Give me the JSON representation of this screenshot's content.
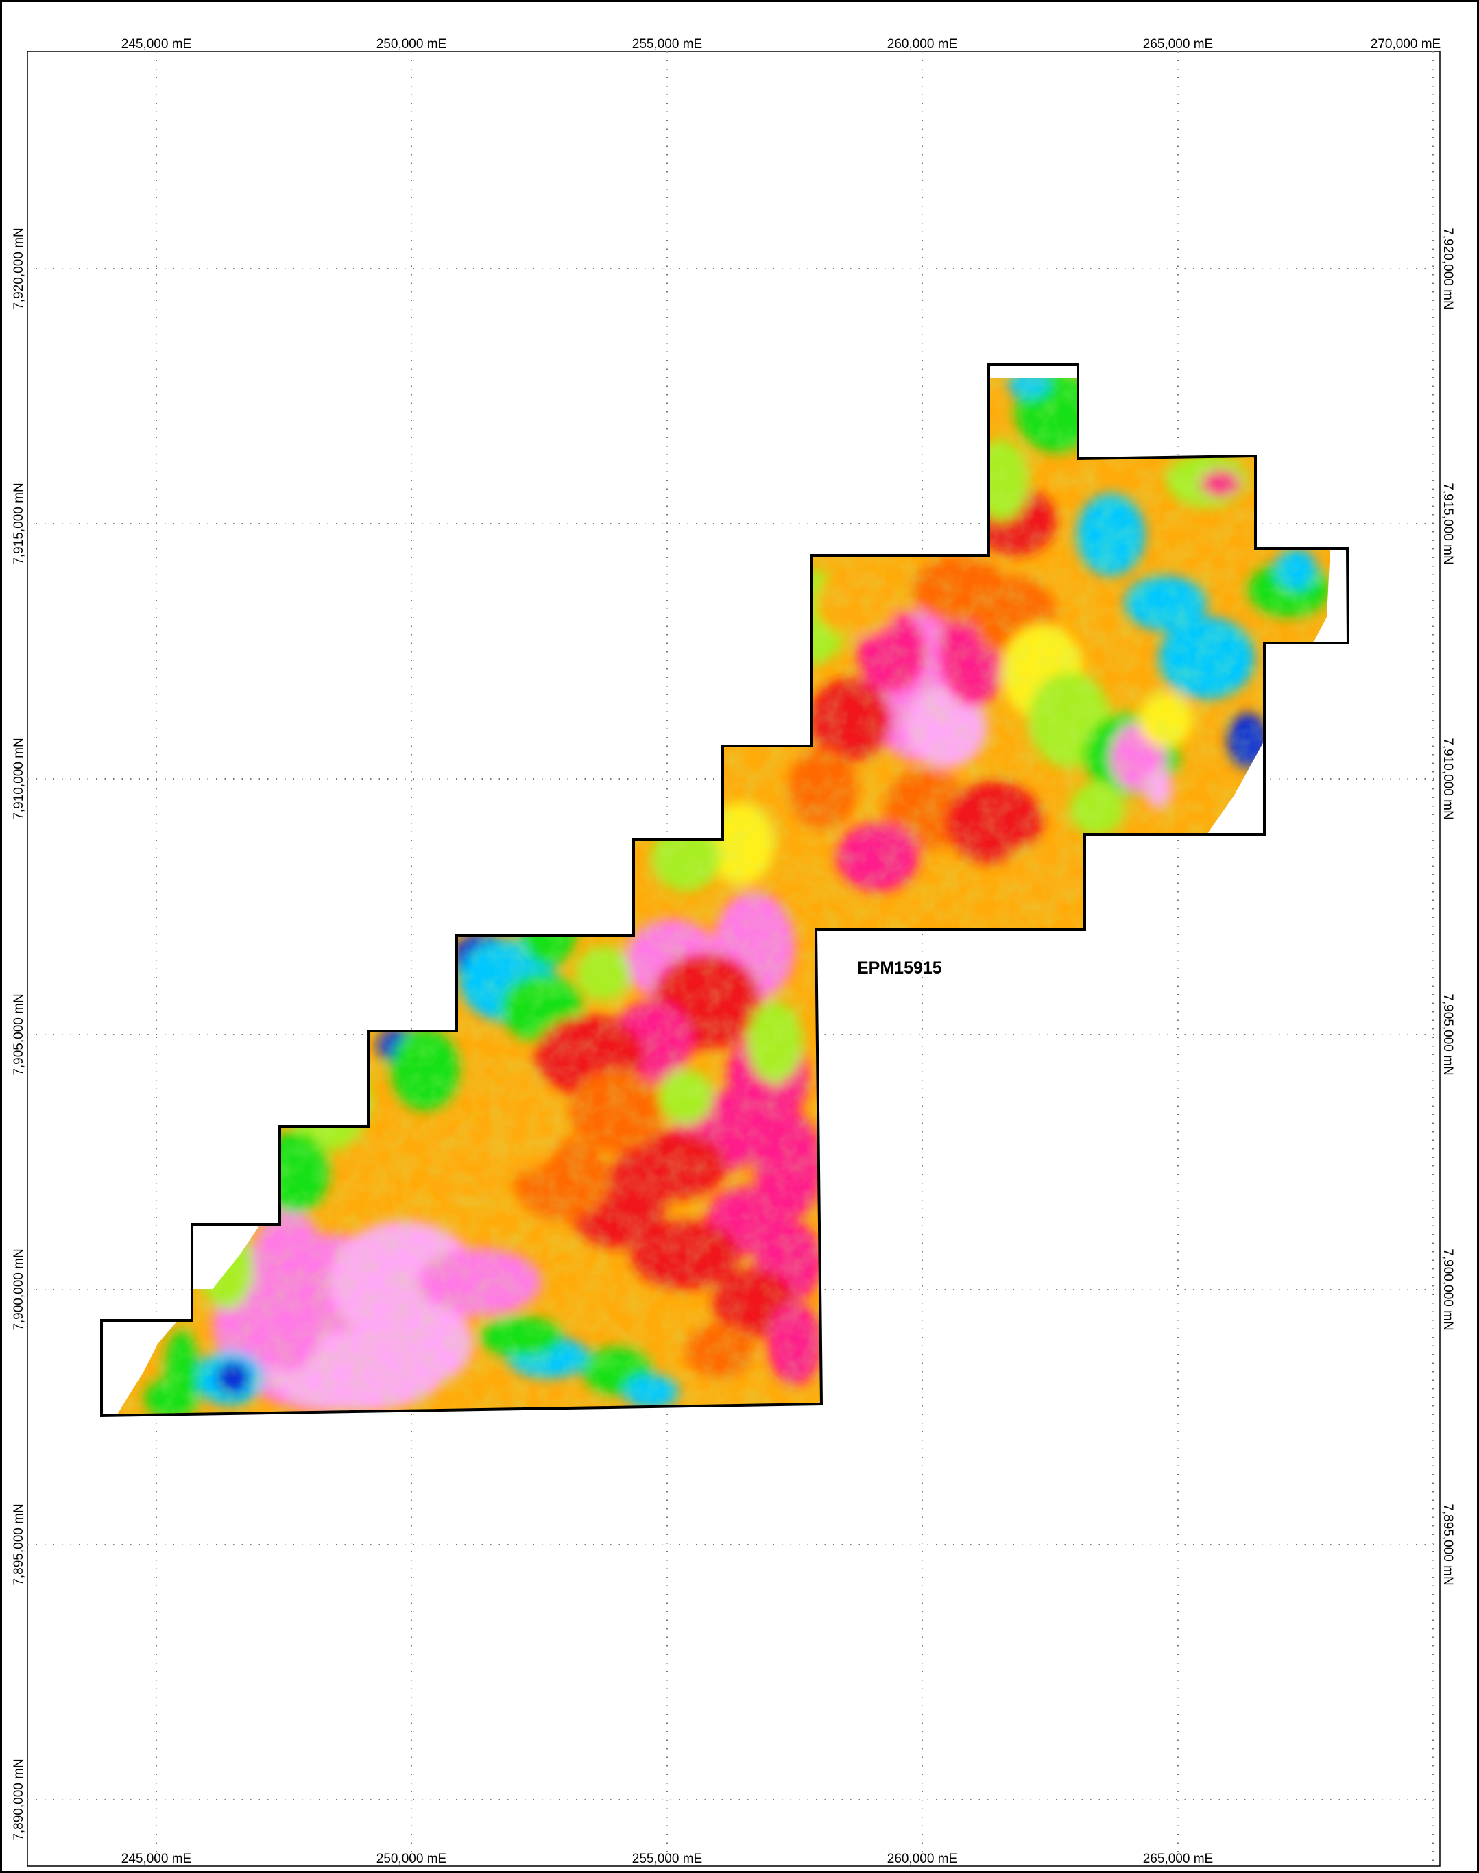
{
  "map": {
    "tenement_label": "EPM15915",
    "easting_labels_top": [
      "245,000 mE",
      "250,000 mE",
      "255,000 mE",
      "260,000 mE",
      "265,000 mE",
      "270,000 mE"
    ],
    "easting_labels_bottom": [
      "245,000 mE",
      "250,000 mE",
      "255,000 mE",
      "260,000 mE",
      "265,000 mE"
    ],
    "northing_labels_left": [
      "7,920,000 mN",
      "7,915,000 mN",
      "7,910,000 mN",
      "7,905,000 mN",
      "7,900,000 mN",
      "7,895,000 mN",
      "7,890,000 mN"
    ],
    "northing_labels_right": [
      "7,920,000 mN",
      "7,915,000 mN",
      "7,910,000 mN",
      "7,905,000 mN",
      "7,900,000 mN",
      "7,895,000 mN"
    ],
    "boundary_color": "#000000",
    "grid_color": "#777777",
    "colormap": [
      "#0a2fd6",
      "#00c8ff",
      "#19e019",
      "#a8ee22",
      "#fff01e",
      "#ffab0a",
      "#ff6a00",
      "#f0191e",
      "#ff1c8c",
      "#ff7ae6",
      "#ffa8f5"
    ]
  }
}
